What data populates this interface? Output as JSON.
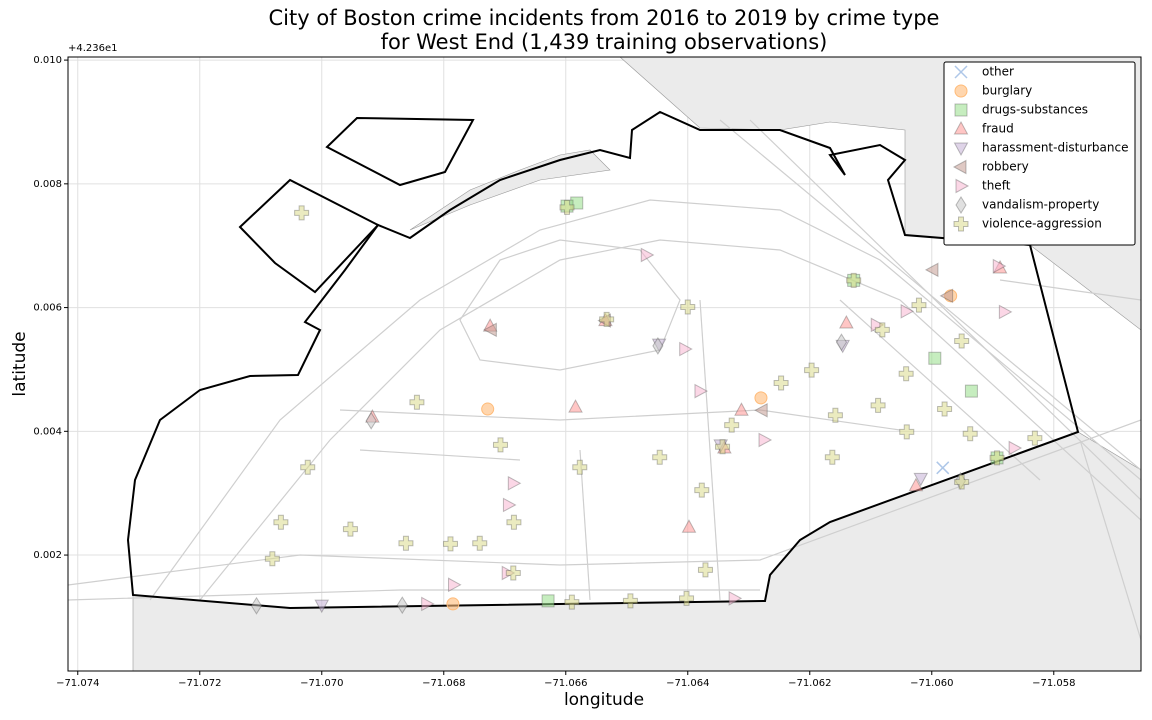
{
  "chart_data": {
    "type": "scatter",
    "title": [
      "City of Boston crime incidents from 2016 to 2019 by crime type",
      "for West End (1,439 training observations)"
    ],
    "x_label": "longitude",
    "y_label": "latitude",
    "y_offset_label": "+4.236e1",
    "xlim": [
      -71.07416,
      -71.05657
    ],
    "ylim": [
      0.000126,
      0.01005
    ],
    "xticks": [
      {
        "value": -71.074,
        "label": "−71.074"
      },
      {
        "value": -71.072,
        "label": "−71.072"
      },
      {
        "value": -71.07,
        "label": "−71.070"
      },
      {
        "value": -71.068,
        "label": "−71.068"
      },
      {
        "value": -71.066,
        "label": "−71.066"
      },
      {
        "value": -71.064,
        "label": "−71.064"
      },
      {
        "value": -71.062,
        "label": "−71.062"
      },
      {
        "value": -71.06,
        "label": "−71.060"
      },
      {
        "value": -71.058,
        "label": "−71.058"
      }
    ],
    "yticks": [
      0.002,
      0.004,
      0.006,
      0.008,
      {
        "value": 0.01,
        "label": "0.010"
      }
    ],
    "grid": true,
    "legend": "upper right",
    "series": [
      {
        "name": "other",
        "color": "#aec7e8",
        "marker": "x",
        "x": [
          -71.05982
        ],
        "values": [
          0.00341
        ]
      },
      {
        "name": "burglary",
        "color": "#ffbb78",
        "marker": "circle",
        "x": [
          -71.06728,
          -71.05969,
          -71.0587,
          -71.0628,
          -71.06785
        ],
        "values": [
          0.00436,
          0.00619,
          0.00712,
          0.00454,
          0.00121
        ]
      },
      {
        "name": "drugs-substances",
        "color": "#98df8a",
        "marker": "square",
        "x": [
          -71.06582,
          -71.06598,
          -71.06629,
          -71.05995,
          -71.05893,
          -71.05935,
          -71.06128
        ],
        "values": [
          0.00769,
          0.00764,
          0.00126,
          0.00518,
          0.00357,
          0.00465,
          0.00644
        ]
      },
      {
        "name": "fraud",
        "color": "#ff9896",
        "marker": "triangle-up",
        "x": [
          -71.06917,
          -71.06724,
          -71.06535,
          -71.06584,
          -71.06312,
          -71.0614,
          -71.05888,
          -71.06026,
          -71.0634,
          -71.06398
        ],
        "values": [
          0.00423,
          0.0057,
          0.00579,
          0.00439,
          0.00434,
          0.00575,
          0.00664,
          0.00312,
          0.00373,
          0.00245
        ]
      },
      {
        "name": "harassment-disturbance",
        "color": "#c5b0d5",
        "marker": "triangle-down",
        "x": [
          -71.07,
          -71.06346,
          -71.06146,
          -71.06018,
          -71.06447
        ],
        "values": [
          0.00119,
          0.00378,
          0.00539,
          0.00324,
          0.00541
        ]
      },
      {
        "name": "robbery",
        "color": "#c49c94",
        "marker": "triangle-left",
        "x": [
          -71.06722,
          -71.05974,
          -71.05998,
          -71.06278,
          -71.06535
        ],
        "values": [
          0.00564,
          0.00619,
          0.00661,
          0.00434,
          0.00579
        ]
      },
      {
        "name": "theft",
        "color": "#f7b6d2",
        "marker": "triangle-right",
        "x": [
          -71.06468,
          -71.06405,
          -71.0638,
          -71.06686,
          -71.06694,
          -71.06784,
          -71.06828,
          -71.06324,
          -71.05891,
          -71.05881,
          -71.05865,
          -71.06275,
          -71.06091,
          -71.06042,
          -71.06696
        ],
        "values": [
          0.00685,
          0.00533,
          0.00465,
          0.00316,
          0.00281,
          0.00152,
          0.00121,
          0.0013,
          0.00667,
          0.00593,
          0.00373,
          0.00386,
          0.00572,
          0.00594,
          0.00171
        ]
      },
      {
        "name": "vandalism-property",
        "color": "#c7c7c7",
        "marker": "diamond",
        "x": [
          -71.06919,
          -71.06868,
          -71.07107,
          -71.06449,
          -71.05953,
          -71.06148
        ],
        "values": [
          0.00417,
          0.00119,
          0.00118,
          0.00538,
          0.0032,
          0.00544
        ]
      },
      {
        "name": "violence-aggression",
        "color": "#dbdb8d",
        "marker": "plus",
        "x": [
          -71.07033,
          -71.07067,
          -71.07081,
          -71.06953,
          -71.06862,
          -71.06789,
          -71.06741,
          -71.06685,
          -71.06686,
          -71.0659,
          -71.06494,
          -71.06402,
          -71.06371,
          -71.06446,
          -71.064,
          -71.06377,
          -71.06343,
          -71.06328,
          -71.06247,
          -71.06197,
          -71.06128,
          -71.06081,
          -71.06042,
          -71.06088,
          -71.06158,
          -71.06163,
          -71.06041,
          -71.05979,
          -71.05937,
          -71.05893,
          -71.05831,
          -71.06021,
          -71.05951,
          -71.06533,
          -71.06598,
          -71.07023,
          -71.06844,
          -71.06707,
          -71.06577,
          -71.05951
        ],
        "values": [
          0.00753,
          0.00253,
          0.00194,
          0.00242,
          0.00219,
          0.00218,
          0.00219,
          0.00253,
          0.00171,
          0.00124,
          0.00126,
          0.0013,
          0.00176,
          0.00358,
          0.00601,
          0.00305,
          0.00375,
          0.0041,
          0.00478,
          0.00499,
          0.00644,
          0.00564,
          0.00493,
          0.00442,
          0.00426,
          0.00358,
          0.00399,
          0.00436,
          0.00396,
          0.00357,
          0.00389,
          0.00604,
          0.00318,
          0.00581,
          0.00762,
          0.00342,
          0.00447,
          0.00378,
          0.00342,
          0.00546
        ]
      }
    ]
  }
}
